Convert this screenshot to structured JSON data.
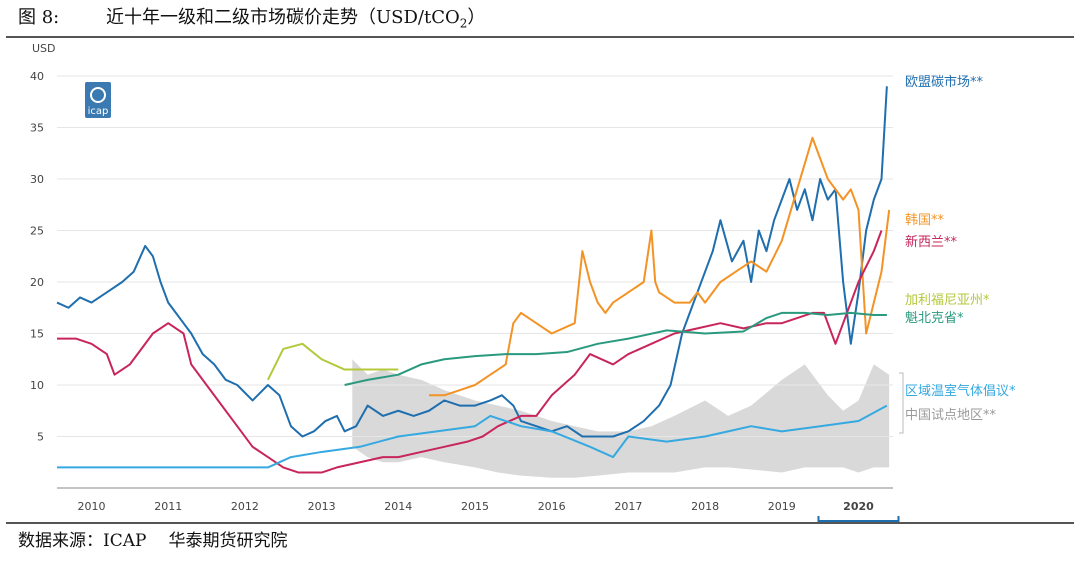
{
  "figure": {
    "number": "图 8:",
    "title": "近十年一级和二级市场碳价走势（USD/tCO",
    "title_sub": "2",
    "title_end": "）"
  },
  "source": {
    "label": "数据来源：ICAP",
    "org": "华泰期货研究院"
  },
  "logo": {
    "text": "icap",
    "color": "#3a7ab0"
  },
  "chart_data": {
    "type": "line",
    "title": "近十年一级和二级市场碳价走势（USD/tCO2）",
    "ylabel": "USD",
    "xlabel": "",
    "ylim": [
      0,
      40
    ],
    "xlim": [
      2009.55,
      2020.45
    ],
    "y_ticks": [
      5,
      10,
      15,
      20,
      25,
      30,
      35,
      40
    ],
    "x_ticks": [
      2010,
      2011,
      2012,
      2013,
      2014,
      2015,
      2016,
      2017,
      2018,
      2019,
      2020
    ],
    "highlighted_x_tick": 2020,
    "band": {
      "name": "中国试点地区**",
      "color": "#d9d9d9",
      "label_color": "#9a9a9a",
      "x": [
        2013.4,
        2013.6,
        2013.8,
        2014.0,
        2014.3,
        2014.6,
        2015.0,
        2015.3,
        2015.6,
        2016.0,
        2016.3,
        2016.6,
        2017.0,
        2017.3,
        2017.6,
        2018.0,
        2018.3,
        2018.6,
        2019.0,
        2019.3,
        2019.6,
        2019.8,
        2020.0,
        2020.2,
        2020.4
      ],
      "upper": [
        12.5,
        11.0,
        11.5,
        11.0,
        10.5,
        9.5,
        8.5,
        8.0,
        7.5,
        6.5,
        6.0,
        5.5,
        5.5,
        6.0,
        7.0,
        8.5,
        7.0,
        8.0,
        10.5,
        12.0,
        9.0,
        7.5,
        8.5,
        12.0,
        11.0
      ],
      "lower": [
        4.0,
        3.0,
        2.5,
        2.5,
        3.0,
        2.5,
        2.0,
        1.5,
        1.2,
        1.0,
        1.0,
        1.2,
        1.5,
        1.5,
        1.5,
        2.0,
        2.0,
        1.8,
        1.5,
        2.0,
        2.0,
        2.0,
        1.5,
        2.0,
        2.0
      ]
    },
    "series": [
      {
        "name": "欧盟碳市场**",
        "color": "#1f6eae",
        "x": [
          2009.55,
          2009.7,
          2009.85,
          2010.0,
          2010.2,
          2010.4,
          2010.55,
          2010.7,
          2010.8,
          2010.9,
          2011.0,
          2011.1,
          2011.2,
          2011.3,
          2011.45,
          2011.6,
          2011.75,
          2011.9,
          2012.1,
          2012.3,
          2012.45,
          2012.6,
          2012.75,
          2012.9,
          2013.05,
          2013.2,
          2013.3,
          2013.45,
          2013.6,
          2013.8,
          2014.0,
          2014.2,
          2014.4,
          2014.6,
          2014.8,
          2015.0,
          2015.2,
          2015.35,
          2015.5,
          2015.6,
          2015.8,
          2016.0,
          2016.2,
          2016.4,
          2016.6,
          2016.8,
          2017.0,
          2017.2,
          2017.4,
          2017.55,
          2017.7,
          2017.85,
          2018.0,
          2018.1,
          2018.2,
          2018.35,
          2018.5,
          2018.6,
          2018.7,
          2018.8,
          2018.9,
          2019.0,
          2019.1,
          2019.2,
          2019.3,
          2019.4,
          2019.5,
          2019.6,
          2019.7,
          2019.8,
          2019.9,
          2020.0,
          2020.1,
          2020.2,
          2020.3,
          2020.37
        ],
        "values": [
          18,
          17.5,
          18.5,
          18,
          19,
          20,
          21,
          23.5,
          22.5,
          20,
          18,
          17,
          16,
          15,
          13,
          12,
          10.5,
          10,
          8.5,
          10,
          9,
          6,
          5,
          5.5,
          6.5,
          7,
          5.5,
          6,
          8,
          7,
          7.5,
          7,
          7.5,
          8.5,
          8,
          8,
          8.5,
          9,
          8,
          6.5,
          6,
          5.5,
          6,
          5,
          5,
          5,
          5.5,
          6.5,
          8,
          10,
          15,
          18,
          21,
          23,
          26,
          22,
          24,
          20,
          25,
          23,
          26,
          28,
          30,
          27,
          29,
          26,
          30,
          28,
          29,
          20,
          14,
          19,
          25,
          28,
          30,
          39
        ]
      },
      {
        "name": "韩国**",
        "color": "#f39325",
        "x": [
          2014.4,
          2014.6,
          2014.8,
          2015.0,
          2015.2,
          2015.4,
          2015.5,
          2015.6,
          2015.8,
          2016.0,
          2016.3,
          2016.4,
          2016.5,
          2016.6,
          2016.7,
          2016.8,
          2017.0,
          2017.2,
          2017.3,
          2017.35,
          2017.4,
          2017.6,
          2017.8,
          2017.9,
          2018.0,
          2018.2,
          2018.4,
          2018.6,
          2018.8,
          2019.0,
          2019.2,
          2019.4,
          2019.5,
          2019.6,
          2019.8,
          2019.9,
          2020.0,
          2020.1,
          2020.2,
          2020.3,
          2020.4
        ],
        "values": [
          9,
          9,
          9.5,
          10,
          11,
          12,
          16,
          17,
          16,
          15,
          16,
          23,
          20,
          18,
          17,
          18,
          19,
          20,
          25,
          20,
          19,
          18,
          18,
          19,
          18,
          20,
          21,
          22,
          21,
          24,
          29,
          34,
          32,
          30,
          28,
          29,
          27,
          15,
          18,
          21,
          27
        ]
      },
      {
        "name": "新西兰**",
        "color": "#c8265a",
        "x": [
          2009.55,
          2009.8,
          2010.0,
          2010.2,
          2010.3,
          2010.5,
          2010.6,
          2010.8,
          2011.0,
          2011.2,
          2011.3,
          2011.5,
          2011.7,
          2011.9,
          2012.1,
          2012.3,
          2012.5,
          2012.7,
          2013.0,
          2013.2,
          2013.5,
          2013.8,
          2014.0,
          2014.3,
          2014.6,
          2014.9,
          2015.1,
          2015.3,
          2015.6,
          2015.8,
          2016.0,
          2016.3,
          2016.5,
          2016.8,
          2017.0,
          2017.3,
          2017.6,
          2017.9,
          2018.2,
          2018.5,
          2018.8,
          2019.0,
          2019.2,
          2019.4,
          2019.55,
          2019.7,
          2019.8,
          2020.0,
          2020.2,
          2020.3
        ],
        "values": [
          14.5,
          14.5,
          14,
          13,
          11,
          12,
          13,
          15,
          16,
          15,
          12,
          10,
          8,
          6,
          4,
          3,
          2,
          1.5,
          1.5,
          2,
          2.5,
          3,
          3,
          3.5,
          4,
          4.5,
          5,
          6,
          7,
          7,
          9,
          11,
          13,
          12,
          13,
          14,
          15,
          15.5,
          16,
          15.5,
          16,
          16,
          16.5,
          17,
          17,
          14,
          16,
          20,
          23,
          25
        ]
      },
      {
        "name": "加利福尼亚州*",
        "color": "#b4c83c",
        "x": [
          2012.3,
          2012.5,
          2012.75,
          2013.0,
          2013.3,
          2013.6,
          2014.0
        ],
        "values": [
          10.5,
          13.5,
          14,
          12.5,
          11.5,
          11.5,
          11.5
        ]
      },
      {
        "name": "魁北克省*",
        "color": "#2a9a7e",
        "x": [
          2013.3,
          2013.6,
          2014.0,
          2014.3,
          2014.6,
          2015.0,
          2015.4,
          2015.8,
          2016.2,
          2016.6,
          2017.0,
          2017.5,
          2018.0,
          2018.5,
          2018.8,
          2019.0,
          2019.3,
          2019.6,
          2019.9,
          2020.2,
          2020.37
        ],
        "values": [
          10,
          10.5,
          11,
          12,
          12.5,
          12.8,
          13,
          13,
          13.2,
          14,
          14.5,
          15.3,
          15,
          15.2,
          16.5,
          17,
          17,
          16.8,
          17,
          16.8,
          16.8
        ]
      },
      {
        "name": "区域温室气体倡议*",
        "color": "#36a9e1",
        "x": [
          2009.55,
          2010.0,
          2011.0,
          2012.0,
          2012.3,
          2012.6,
          2013.0,
          2013.5,
          2014.0,
          2014.5,
          2015.0,
          2015.2,
          2015.6,
          2016.0,
          2016.5,
          2016.8,
          2017.0,
          2017.5,
          2018.0,
          2018.3,
          2018.6,
          2019.0,
          2019.5,
          2020.0,
          2020.37
        ],
        "values": [
          2,
          2,
          2,
          2,
          2,
          3,
          3.5,
          4,
          5,
          5.5,
          6,
          7,
          6,
          5.5,
          4,
          3,
          5,
          4.5,
          5,
          5.5,
          6,
          5.5,
          6,
          6.5,
          8
        ]
      }
    ]
  }
}
